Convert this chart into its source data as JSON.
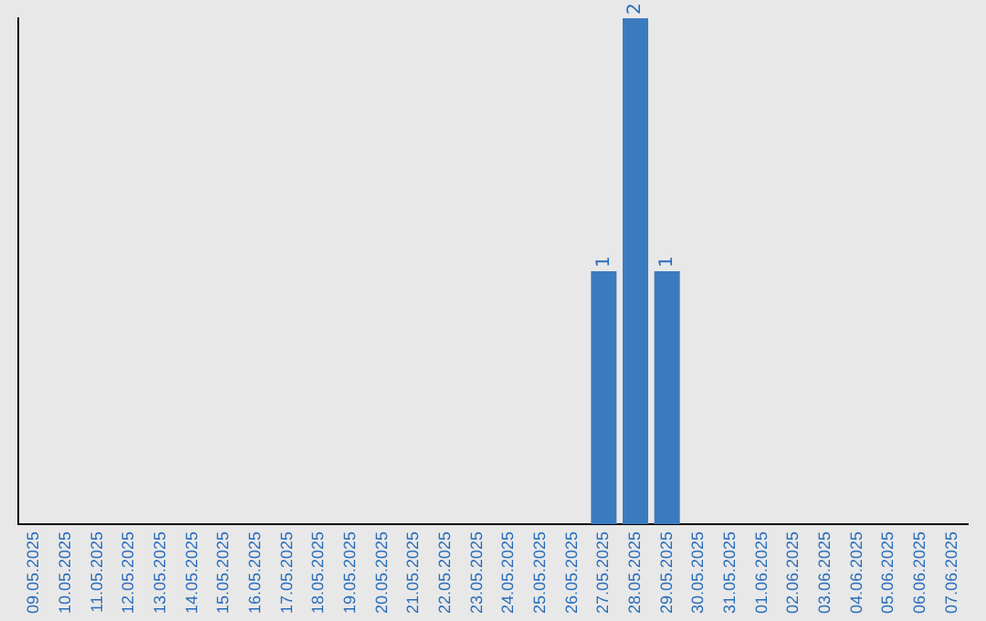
{
  "chart_data": {
    "type": "bar",
    "categories": [
      "09.05.2025",
      "10.05.2025",
      "11.05.2025",
      "12.05.2025",
      "13.05.2025",
      "14.05.2025",
      "15.05.2025",
      "16.05.2025",
      "17.05.2025",
      "18.05.2025",
      "19.05.2025",
      "20.05.2025",
      "21.05.2025",
      "22.05.2025",
      "23.05.2025",
      "24.05.2025",
      "25.05.2025",
      "26.05.2025",
      "27.05.2025",
      "28.05.2025",
      "29.05.2025",
      "30.05.2025",
      "31.05.2025",
      "01.06.2025",
      "02.06.2025",
      "03.06.2025",
      "04.06.2025",
      "05.06.2025",
      "06.06.2025",
      "07.06.2025"
    ],
    "values": [
      null,
      null,
      null,
      null,
      null,
      null,
      null,
      null,
      null,
      null,
      null,
      null,
      null,
      null,
      null,
      null,
      null,
      null,
      1,
      2,
      1,
      null,
      null,
      null,
      null,
      null,
      null,
      null,
      null,
      null
    ],
    "data_labels": true,
    "color": "#3a7bbf",
    "grid": false,
    "legend": false,
    "tick_labels": "x"
  }
}
